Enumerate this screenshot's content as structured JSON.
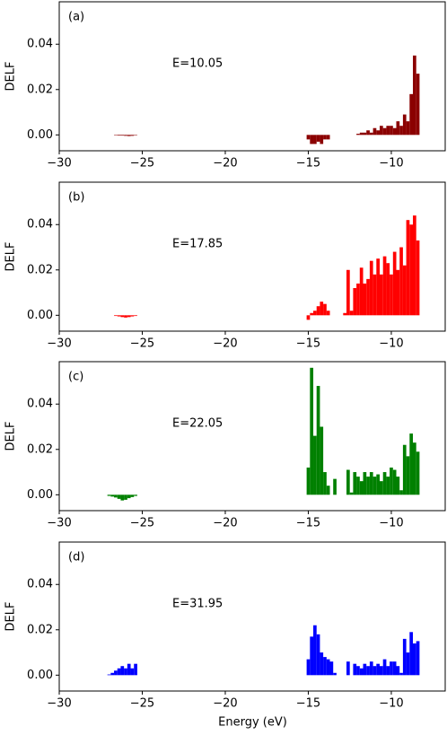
{
  "chart_data": [
    {
      "type": "bar",
      "label": "(a)",
      "annotation": "E=10.05",
      "ylabel": "DELF",
      "color": "#8b0000",
      "x": [
        -27.0,
        -26.8,
        -26.6,
        -26.4,
        -26.2,
        -26.0,
        -25.8,
        -25.6,
        -25.4,
        -25.2,
        -15.0,
        -14.8,
        -14.6,
        -14.4,
        -14.2,
        -14.0,
        -13.8,
        -13.6,
        -13.4,
        -13.2,
        -13.0,
        -12.8,
        -12.6,
        -12.4,
        -12.2,
        -12.0,
        -11.8,
        -11.6,
        -11.4,
        -11.2,
        -11.0,
        -10.8,
        -10.6,
        -10.4,
        -10.2,
        -10.0,
        -9.8,
        -9.6,
        -9.4,
        -9.2,
        -9.0,
        -8.8,
        -8.6,
        -8.4
      ],
      "values": [
        0,
        0,
        -0.0002,
        -0.0003,
        -0.0003,
        -0.0004,
        -0.0005,
        -0.0004,
        -0.0002,
        0,
        -0.002,
        -0.004,
        -0.004,
        -0.003,
        -0.004,
        -0.002,
        -0.002,
        0,
        0,
        0,
        0,
        0,
        0,
        0,
        0,
        0.0005,
        0.001,
        0.001,
        0.002,
        0.001,
        0.003,
        0.002,
        0.004,
        0.003,
        0.004,
        0.004,
        0.003,
        0.006,
        0.004,
        0.009,
        0.006,
        0.018,
        0.035,
        0.027
      ],
      "xlim": [
        -30,
        -6.7
      ],
      "ylim": [
        -0.007,
        0.0587
      ],
      "xticks": [
        {
          "value": -30,
          "label": "−30"
        },
        {
          "value": -25,
          "label": "−25"
        },
        {
          "value": -20,
          "label": "−20"
        },
        {
          "value": -15,
          "label": "−15"
        },
        {
          "value": -10,
          "label": "−10"
        }
      ],
      "yticks": [
        {
          "value": 0,
          "label": "0.00"
        },
        {
          "value": 0.02,
          "label": "0.02"
        },
        {
          "value": 0.04,
          "label": "0.04"
        }
      ]
    },
    {
      "type": "bar",
      "label": "(b)",
      "annotation": "E=17.85",
      "ylabel": "DELF",
      "color": "#ff0000",
      "x": [
        -27.0,
        -26.8,
        -26.6,
        -26.4,
        -26.2,
        -26.0,
        -25.8,
        -25.6,
        -25.4,
        -25.2,
        -15.0,
        -14.8,
        -14.6,
        -14.4,
        -14.2,
        -14.0,
        -13.8,
        -13.6,
        -13.4,
        -13.2,
        -13.0,
        -12.8,
        -12.6,
        -12.4,
        -12.2,
        -12.0,
        -11.8,
        -11.6,
        -11.4,
        -11.2,
        -11.0,
        -10.8,
        -10.6,
        -10.4,
        -10.2,
        -10.0,
        -9.8,
        -9.6,
        -9.4,
        -9.2,
        -9.0,
        -8.8,
        -8.6,
        -8.4
      ],
      "values": [
        0,
        0,
        -0.0003,
        -0.0005,
        -0.0008,
        -0.001,
        -0.0008,
        -0.0005,
        -0.0003,
        0,
        -0.002,
        0.001,
        0.002,
        0.004,
        0.006,
        0.005,
        0.002,
        0,
        0,
        0,
        0,
        0.001,
        0.02,
        0.002,
        0.012,
        0.014,
        0.021,
        0.014,
        0.016,
        0.024,
        0.018,
        0.025,
        0.018,
        0.026,
        0.023,
        0.018,
        0.028,
        0.02,
        0.03,
        0.022,
        0.042,
        0.04,
        0.044,
        0.033
      ],
      "xlim": [
        -30,
        -6.7
      ],
      "ylim": [
        -0.007,
        0.0587
      ],
      "xticks": [
        {
          "value": -30,
          "label": "−30"
        },
        {
          "value": -25,
          "label": "−25"
        },
        {
          "value": -20,
          "label": "−20"
        },
        {
          "value": -15,
          "label": "−15"
        },
        {
          "value": -10,
          "label": "−10"
        }
      ],
      "yticks": [
        {
          "value": 0,
          "label": "0.00"
        },
        {
          "value": 0.02,
          "label": "0.02"
        },
        {
          "value": 0.04,
          "label": "0.04"
        }
      ]
    },
    {
      "type": "bar",
      "label": "(c)",
      "annotation": "E=22.05",
      "ylabel": "DELF",
      "color": "#008000",
      "x": [
        -27.0,
        -26.8,
        -26.6,
        -26.4,
        -26.2,
        -26.0,
        -25.8,
        -25.6,
        -25.4,
        -25.2,
        -15.0,
        -14.8,
        -14.6,
        -14.4,
        -14.2,
        -14.0,
        -13.8,
        -13.6,
        -13.4,
        -13.2,
        -13.0,
        -12.8,
        -12.6,
        -12.4,
        -12.2,
        -12.0,
        -11.8,
        -11.6,
        -11.4,
        -11.2,
        -11.0,
        -10.8,
        -10.6,
        -10.4,
        -10.2,
        -10.0,
        -9.8,
        -9.6,
        -9.4,
        -9.2,
        -9.0,
        -8.8,
        -8.6,
        -8.4
      ],
      "values": [
        -0.0005,
        -0.0008,
        -0.0012,
        -0.0018,
        -0.0025,
        -0.0022,
        -0.0015,
        -0.001,
        -0.0005,
        0,
        0.012,
        0.056,
        0.026,
        0.048,
        0.03,
        0.01,
        0.004,
        0,
        0.007,
        0,
        0,
        0,
        0.011,
        0.001,
        0.01,
        0.008,
        0.006,
        0.01,
        0.008,
        0.01,
        0.008,
        0.009,
        0.006,
        0.01,
        0.008,
        0.012,
        0.011,
        0.008,
        0.002,
        0.022,
        0.017,
        0.027,
        0.023,
        0.019
      ],
      "xlim": [
        -30,
        -6.7
      ],
      "ylim": [
        -0.007,
        0.0587
      ],
      "xticks": [
        {
          "value": -30,
          "label": "−30"
        },
        {
          "value": -25,
          "label": "−25"
        },
        {
          "value": -20,
          "label": "−20"
        },
        {
          "value": -15,
          "label": "−15"
        },
        {
          "value": -10,
          "label": "−10"
        }
      ],
      "yticks": [
        {
          "value": 0,
          "label": "0.00"
        },
        {
          "value": 0.02,
          "label": "0.02"
        },
        {
          "value": 0.04,
          "label": "0.04"
        }
      ]
    },
    {
      "type": "bar",
      "label": "(d)",
      "annotation": "E=31.95",
      "ylabel": "DELF",
      "xlabel": "Energy (eV)",
      "color": "#0000ff",
      "x": [
        -27.0,
        -26.8,
        -26.6,
        -26.4,
        -26.2,
        -26.0,
        -25.8,
        -25.6,
        -25.4,
        -25.2,
        -15.0,
        -14.8,
        -14.6,
        -14.4,
        -14.2,
        -14.0,
        -13.8,
        -13.6,
        -13.4,
        -13.2,
        -13.0,
        -12.8,
        -12.6,
        -12.4,
        -12.2,
        -12.0,
        -11.8,
        -11.6,
        -11.4,
        -11.2,
        -11.0,
        -10.8,
        -10.6,
        -10.4,
        -10.2,
        -10.0,
        -9.8,
        -9.6,
        -9.4,
        -9.2,
        -9.0,
        -8.8,
        -8.6,
        -8.4
      ],
      "values": [
        0.0003,
        0.001,
        0.002,
        0.003,
        0.004,
        0.003,
        0.005,
        0.003,
        0.005,
        0,
        0.007,
        0.017,
        0.022,
        0.018,
        0.01,
        0.008,
        0.007,
        0.006,
        0.001,
        0,
        0,
        0,
        0.006,
        0,
        0.005,
        0.004,
        0.003,
        0.005,
        0.004,
        0.006,
        0.004,
        0.005,
        0.004,
        0.007,
        0.004,
        0.006,
        0.006,
        0.004,
        0.001,
        0.016,
        0.01,
        0.019,
        0.014,
        0.015
      ],
      "xlim": [
        -30,
        -6.7
      ],
      "ylim": [
        -0.007,
        0.0587
      ],
      "xticks": [
        {
          "value": -30,
          "label": "−30"
        },
        {
          "value": -25,
          "label": "−25"
        },
        {
          "value": -20,
          "label": "−20"
        },
        {
          "value": -15,
          "label": "−15"
        },
        {
          "value": -10,
          "label": "−10"
        }
      ],
      "yticks": [
        {
          "value": 0,
          "label": "0.00"
        },
        {
          "value": 0.02,
          "label": "0.02"
        },
        {
          "value": 0.04,
          "label": "0.04"
        }
      ]
    }
  ]
}
